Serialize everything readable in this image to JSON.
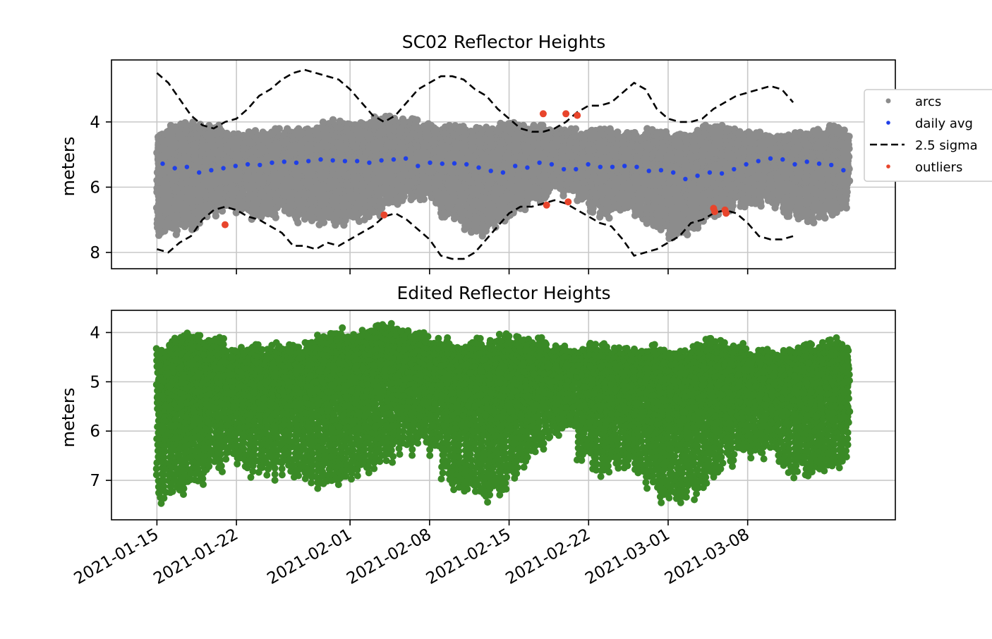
{
  "chart_data": [
    {
      "type": "scatter",
      "title": "SC02 Reflector Heights",
      "xlabel": "",
      "ylabel": "meters",
      "y_inverted": true,
      "ylim": [
        8.5,
        2.1
      ],
      "yticks": [
        4,
        6,
        8
      ],
      "xlim": [
        "2021-01-11",
        "2021-03-21"
      ],
      "xticks": [
        "2021-01-15",
        "2021-01-22",
        "2021-02-01",
        "2021-02-08",
        "2021-02-15",
        "2021-02-22",
        "2021-03-01",
        "2021-03-08"
      ],
      "grid": true,
      "legend": {
        "placement": "outside-right",
        "entries": [
          {
            "label": "arcs",
            "color": "#8c8c8c",
            "marker": "dot"
          },
          {
            "label": "daily avg",
            "color": "#1f3fe8",
            "marker": "dot"
          },
          {
            "label": "2.5 sigma",
            "color": "#000000",
            "marker": "dashed-line"
          },
          {
            "label": "outliers",
            "color": "#e8452c",
            "marker": "dot"
          }
        ]
      },
      "series": [
        {
          "name": "arcs",
          "color": "#8c8c8c",
          "kind": "daily-arc-bands",
          "day_start": "2021-01-15",
          "daily_min": [
            4.3,
            4.1,
            4.0,
            4.0,
            4.1,
            4.1,
            4.3,
            4.3,
            4.2,
            4.3,
            4.2,
            4.2,
            4.2,
            4.1,
            4.0,
            3.9,
            3.9,
            4.0,
            3.9,
            3.8,
            3.8,
            3.9,
            3.9,
            4.0,
            4.1,
            4.1,
            4.1,
            4.2,
            4.1,
            4.1,
            4.0,
            4.0,
            4.1,
            4.1,
            4.2,
            4.2,
            4.2,
            4.3,
            4.2,
            4.2,
            4.3,
            4.3,
            4.3,
            4.2,
            4.3,
            4.4,
            4.3,
            4.2,
            4.1,
            4.1,
            4.2,
            4.2,
            4.3,
            4.3,
            4.4,
            4.3,
            4.3,
            4.2,
            4.2,
            4.1,
            4.2
          ],
          "daily_max": [
            7.6,
            7.5,
            7.4,
            7.3,
            7.1,
            6.9,
            6.7,
            6.9,
            7.0,
            7.1,
            7.0,
            6.9,
            7.1,
            7.2,
            7.3,
            7.3,
            7.2,
            7.1,
            7.0,
            6.9,
            6.8,
            6.6,
            6.5,
            6.4,
            6.5,
            7.0,
            7.2,
            7.4,
            7.5,
            7.5,
            7.3,
            7.0,
            6.8,
            6.6,
            6.4,
            6.3,
            6.2,
            6.6,
            6.8,
            7.0,
            6.8,
            6.8,
            7.0,
            7.3,
            7.5,
            7.6,
            7.5,
            7.4,
            7.2,
            7.0,
            6.8,
            6.7,
            6.6,
            6.6,
            6.7,
            6.9,
            7.0,
            7.1,
            7.1,
            7.0,
            6.9
          ]
        },
        {
          "name": "daily avg",
          "color": "#1f3fe8",
          "x_day_offset": 0.5,
          "day_start": "2021-01-15",
          "y": [
            5.28,
            5.42,
            5.38,
            5.55,
            5.48,
            5.42,
            5.35,
            5.3,
            5.32,
            5.25,
            5.22,
            5.25,
            5.2,
            5.15,
            5.18,
            5.2,
            5.2,
            5.25,
            5.18,
            5.15,
            5.12,
            5.35,
            5.25,
            5.28,
            5.27,
            5.3,
            5.4,
            5.5,
            5.55,
            5.35,
            5.4,
            5.25,
            5.3,
            5.45,
            5.45,
            5.3,
            5.38,
            5.38,
            5.35,
            5.38,
            5.5,
            5.48,
            5.55,
            5.75,
            5.65,
            5.55,
            5.58,
            5.45,
            5.3,
            5.2,
            5.12,
            5.15,
            5.3,
            5.22,
            5.28,
            5.32,
            5.48
          ]
        },
        {
          "name": "2.5 sigma upper",
          "color": "#000000",
          "style": "dashed",
          "points": [
            [
              "2021-01-15",
              2.5
            ],
            [
              "2021-01-16",
              2.8
            ],
            [
              "2021-01-17",
              3.3
            ],
            [
              "2021-01-18",
              3.8
            ],
            [
              "2021-01-19",
              4.1
            ],
            [
              "2021-01-20",
              4.2
            ],
            [
              "2021-01-21",
              4.0
            ],
            [
              "2021-01-22",
              3.9
            ],
            [
              "2021-01-23",
              3.6
            ],
            [
              "2021-01-24",
              3.2
            ],
            [
              "2021-01-25",
              3.0
            ],
            [
              "2021-01-26",
              2.7
            ],
            [
              "2021-01-27",
              2.5
            ],
            [
              "2021-01-28",
              2.4
            ],
            [
              "2021-01-29",
              2.5
            ],
            [
              "2021-01-30",
              2.6
            ],
            [
              "2021-01-31",
              2.7
            ],
            [
              "2021-02-01",
              3.0
            ],
            [
              "2021-02-02",
              3.4
            ],
            [
              "2021-02-03",
              3.8
            ],
            [
              "2021-02-04",
              4.0
            ],
            [
              "2021-02-05",
              3.8
            ],
            [
              "2021-02-06",
              3.4
            ],
            [
              "2021-02-07",
              3.0
            ],
            [
              "2021-02-08",
              2.8
            ],
            [
              "2021-02-09",
              2.6
            ],
            [
              "2021-02-10",
              2.6
            ],
            [
              "2021-02-11",
              2.7
            ],
            [
              "2021-02-12",
              3.0
            ],
            [
              "2021-02-13",
              3.2
            ],
            [
              "2021-02-14",
              3.6
            ],
            [
              "2021-02-15",
              3.9
            ],
            [
              "2021-02-16",
              4.2
            ],
            [
              "2021-02-17",
              4.3
            ],
            [
              "2021-02-18",
              4.3
            ],
            [
              "2021-02-19",
              4.2
            ],
            [
              "2021-02-20",
              4.0
            ],
            [
              "2021-02-21",
              3.7
            ],
            [
              "2021-02-22",
              3.5
            ],
            [
              "2021-02-23",
              3.5
            ],
            [
              "2021-02-24",
              3.4
            ],
            [
              "2021-02-25",
              3.1
            ],
            [
              "2021-02-26",
              2.8
            ],
            [
              "2021-02-27",
              3.0
            ],
            [
              "2021-02-28",
              3.6
            ],
            [
              "2021-03-01",
              3.9
            ],
            [
              "2021-03-02",
              4.0
            ],
            [
              "2021-03-03",
              4.0
            ],
            [
              "2021-03-04",
              3.9
            ],
            [
              "2021-03-05",
              3.6
            ],
            [
              "2021-03-06",
              3.4
            ],
            [
              "2021-03-07",
              3.2
            ],
            [
              "2021-03-08",
              3.1
            ],
            [
              "2021-03-09",
              3.0
            ],
            [
              "2021-03-10",
              2.9
            ],
            [
              "2021-03-11",
              3.0
            ],
            [
              "2021-03-12",
              3.4
            ]
          ]
        },
        {
          "name": "2.5 sigma lower",
          "color": "#000000",
          "style": "dashed",
          "points": [
            [
              "2021-01-15",
              7.9
            ],
            [
              "2021-01-16",
              8.0
            ],
            [
              "2021-01-17",
              7.7
            ],
            [
              "2021-01-18",
              7.5
            ],
            [
              "2021-01-19",
              7.0
            ],
            [
              "2021-01-20",
              6.7
            ],
            [
              "2021-01-21",
              6.6
            ],
            [
              "2021-01-22",
              6.7
            ],
            [
              "2021-01-23",
              6.9
            ],
            [
              "2021-01-24",
              7.0
            ],
            [
              "2021-01-25",
              7.2
            ],
            [
              "2021-01-26",
              7.4
            ],
            [
              "2021-01-27",
              7.8
            ],
            [
              "2021-01-28",
              7.8
            ],
            [
              "2021-01-29",
              7.9
            ],
            [
              "2021-01-30",
              7.7
            ],
            [
              "2021-01-31",
              7.8
            ],
            [
              "2021-02-01",
              7.6
            ],
            [
              "2021-02-02",
              7.4
            ],
            [
              "2021-02-03",
              7.2
            ],
            [
              "2021-02-04",
              6.9
            ],
            [
              "2021-02-05",
              6.8
            ],
            [
              "2021-02-06",
              7.0
            ],
            [
              "2021-02-07",
              7.3
            ],
            [
              "2021-02-08",
              7.6
            ],
            [
              "2021-02-09",
              8.1
            ],
            [
              "2021-02-10",
              8.2
            ],
            [
              "2021-02-11",
              8.2
            ],
            [
              "2021-02-12",
              8.0
            ],
            [
              "2021-02-13",
              7.6
            ],
            [
              "2021-02-14",
              7.2
            ],
            [
              "2021-02-15",
              6.8
            ],
            [
              "2021-02-16",
              6.6
            ],
            [
              "2021-02-17",
              6.6
            ],
            [
              "2021-02-18",
              6.5
            ],
            [
              "2021-02-19",
              6.4
            ],
            [
              "2021-02-20",
              6.5
            ],
            [
              "2021-02-21",
              6.7
            ],
            [
              "2021-02-22",
              6.9
            ],
            [
              "2021-02-23",
              7.1
            ],
            [
              "2021-02-24",
              7.2
            ],
            [
              "2021-02-25",
              7.6
            ],
            [
              "2021-02-26",
              8.1
            ],
            [
              "2021-02-27",
              8.0
            ],
            [
              "2021-02-28",
              7.9
            ],
            [
              "2021-03-01",
              7.7
            ],
            [
              "2021-03-02",
              7.5
            ],
            [
              "2021-03-03",
              7.1
            ],
            [
              "2021-03-04",
              7.0
            ],
            [
              "2021-03-05",
              6.8
            ],
            [
              "2021-03-06",
              6.7
            ],
            [
              "2021-03-07",
              6.8
            ],
            [
              "2021-03-08",
              7.1
            ],
            [
              "2021-03-09",
              7.5
            ],
            [
              "2021-03-10",
              7.6
            ],
            [
              "2021-03-11",
              7.6
            ],
            [
              "2021-03-12",
              7.5
            ]
          ]
        },
        {
          "name": "outliers",
          "color": "#e8452c",
          "points": [
            [
              "2021-01-21",
              7.15
            ],
            [
              "2021-02-04",
              6.85
            ],
            [
              "2021-02-18",
              3.75
            ],
            [
              "2021-02-18.3",
              6.55
            ],
            [
              "2021-02-20",
              3.75
            ],
            [
              "2021-02-20.2",
              6.45
            ],
            [
              "2021-02-21",
              3.8
            ],
            [
              "2021-03-05",
              6.65
            ],
            [
              "2021-03-05.1",
              6.75
            ],
            [
              "2021-03-06",
              6.7
            ],
            [
              "2021-03-06.1",
              6.8
            ]
          ]
        }
      ]
    },
    {
      "type": "scatter",
      "title": "Edited Reflector Heights",
      "xlabel": "",
      "ylabel": "meters",
      "y_inverted": true,
      "ylim": [
        7.8,
        3.55
      ],
      "yticks": [
        4,
        5,
        6,
        7
      ],
      "xlim": [
        "2021-01-11",
        "2021-03-21"
      ],
      "xticks": [
        "2021-01-15",
        "2021-01-22",
        "2021-02-01",
        "2021-02-08",
        "2021-02-15",
        "2021-02-22",
        "2021-03-01",
        "2021-03-08"
      ],
      "grid": true,
      "series": [
        {
          "name": "",
          "color": "#3a8a26",
          "kind": "daily-arc-bands",
          "day_start": "2021-01-15",
          "daily_min": [
            4.3,
            4.1,
            4.0,
            4.0,
            4.1,
            4.1,
            4.3,
            4.3,
            4.2,
            4.3,
            4.2,
            4.2,
            4.2,
            4.1,
            4.0,
            3.9,
            3.9,
            4.0,
            3.9,
            3.8,
            3.8,
            3.9,
            3.9,
            4.0,
            4.1,
            4.1,
            4.1,
            4.2,
            4.1,
            4.1,
            4.0,
            4.0,
            4.1,
            4.1,
            4.2,
            4.2,
            4.2,
            4.3,
            4.2,
            4.2,
            4.3,
            4.3,
            4.3,
            4.2,
            4.3,
            4.4,
            4.3,
            4.2,
            4.1,
            4.1,
            4.2,
            4.2,
            4.3,
            4.3,
            4.4,
            4.3,
            4.3,
            4.2,
            4.2,
            4.1,
            4.2
          ],
          "daily_max": [
            7.6,
            7.5,
            7.4,
            7.3,
            7.1,
            6.9,
            6.7,
            6.9,
            7.0,
            7.1,
            7.0,
            6.9,
            7.1,
            7.2,
            7.3,
            7.3,
            7.2,
            7.1,
            7.0,
            6.9,
            6.8,
            6.6,
            6.5,
            6.4,
            6.5,
            7.0,
            7.2,
            7.4,
            7.5,
            7.5,
            7.3,
            7.0,
            6.8,
            6.6,
            6.4,
            6.3,
            6.2,
            6.6,
            6.8,
            7.0,
            6.8,
            6.8,
            7.0,
            7.3,
            7.5,
            7.6,
            7.5,
            7.4,
            7.2,
            7.0,
            6.8,
            6.7,
            6.6,
            6.6,
            6.7,
            6.9,
            7.0,
            7.1,
            7.1,
            7.0,
            6.9
          ]
        }
      ]
    }
  ]
}
